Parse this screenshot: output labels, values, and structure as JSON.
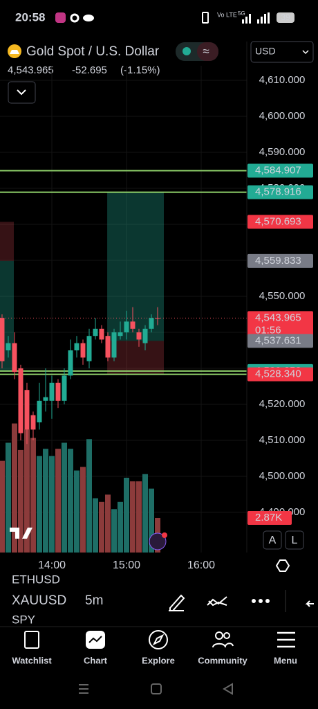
{
  "status_bar": {
    "time": "20:58",
    "network": "5G",
    "battery": "39"
  },
  "header": {
    "symbol_name": "Gold Spot / U.S. Dollar",
    "price": "4,543.965",
    "change": "-52.695",
    "change_pct": "(-1.15%)",
    "currency": "USD"
  },
  "chart_data": {
    "type": "candlestick",
    "ylim": [
      4478.85,
      4614.04
    ],
    "yticks": [
      {
        "value": 4490,
        "label": "4,490.000"
      },
      {
        "value": 4500,
        "label": "4,500.000"
      },
      {
        "value": 4510,
        "label": "4,510.000"
      },
      {
        "value": 4520,
        "label": "4,520.000"
      },
      {
        "value": 4530,
        "label": "4,530.000"
      },
      {
        "value": 4540,
        "label": "4,540.000"
      },
      {
        "value": 4550,
        "label": "4,550.000"
      },
      {
        "value": 4560,
        "label": "4,560.000"
      },
      {
        "value": 4570,
        "label": "4,570.000"
      },
      {
        "value": 4580,
        "label": "4,580.000"
      },
      {
        "value": 4590,
        "label": "4,590.000"
      },
      {
        "value": 4600,
        "label": "4,600.000"
      },
      {
        "value": 4610,
        "label": "4,610.000"
      }
    ],
    "xlim": [
      -0.33,
      39.33
    ],
    "xticks": [
      {
        "value": 8,
        "label": "14:00"
      },
      {
        "value": 20,
        "label": "15:00"
      },
      {
        "value": 32,
        "label": "16:00"
      }
    ],
    "open": [
      4544,
      4535,
      4537,
      4530,
      4524,
      4517,
      4515,
      4521,
      4521,
      4526,
      4521,
      4528,
      4535,
      4537,
      4532,
      4539,
      4541,
      4539,
      4533,
      4539,
      4540,
      4543,
      4540,
      4537,
      4541,
      4544
    ],
    "high": [
      4545,
      4539,
      4540,
      4531,
      4526,
      4518,
      4526,
      4530,
      4528,
      4527,
      4530,
      4538,
      4539,
      4538,
      4541,
      4544,
      4542,
      4540,
      4541,
      4543,
      4546,
      4547,
      4541,
      4542,
      4545,
      4547
    ],
    "low": [
      4530,
      4533,
      4527,
      4510,
      4509,
      4510,
      4513,
      4518,
      4516,
      4519,
      4520,
      4527,
      4533,
      4531,
      4530,
      4538,
      4537,
      4532,
      4532,
      4538,
      4538,
      4540,
      4536,
      4535,
      4540,
      4542
    ],
    "close": [
      4532,
      4537,
      4529,
      4512,
      4513,
      4513,
      4521,
      4522,
      4526,
      4521,
      4528,
      4535,
      4537,
      4533,
      4539,
      4541,
      4538,
      4533,
      4540,
      4540,
      4543,
      4541,
      4538,
      4541,
      4544,
      4543.965
    ],
    "volume": [
      7600,
      9100,
      10700,
      8500,
      10200,
      9500,
      8000,
      8600,
      8000,
      8600,
      9100,
      8600,
      6800,
      7100,
      9400,
      4500,
      4200,
      4800,
      3600,
      4200,
      6200,
      5900,
      5900,
      6500,
      5300,
      2870
    ],
    "volume_tag": {
      "value": 2870,
      "label": "2.87K"
    },
    "up_color": "#22ab94",
    "down_color": "#f7525f",
    "price_tags": [
      {
        "value": 4584.907,
        "label": "4,584.907",
        "color": "#22ab94"
      },
      {
        "value": 4578.916,
        "label": "4,578.916",
        "color": "#22ab94"
      },
      {
        "value": 4570.693,
        "label": "4,570.693",
        "color": "#f23645"
      },
      {
        "value": 4559.833,
        "label": "4,559.833",
        "color": "#787b86"
      },
      {
        "value": 4543.965,
        "label": "4,543.965",
        "color": "#f23645",
        "countdown": "01:56"
      },
      {
        "value": 4537.631,
        "label": "4,537.631",
        "color": "#787b86"
      },
      {
        "value": 4529.258,
        "label": "4,529.258",
        "color": "#22ab94"
      },
      {
        "value": 4528.34,
        "label": "4,528.340",
        "color": "#f23645"
      }
    ],
    "scale_buttons": [
      "A",
      "L"
    ]
  },
  "toolbar": {
    "ghost_above": "ETHUSD",
    "symbol": "XAUUSD",
    "interval": "5m",
    "ghost_below": "SPY"
  },
  "nav": [
    "Watchlist",
    "Chart",
    "Explore",
    "Community",
    "Menu"
  ]
}
